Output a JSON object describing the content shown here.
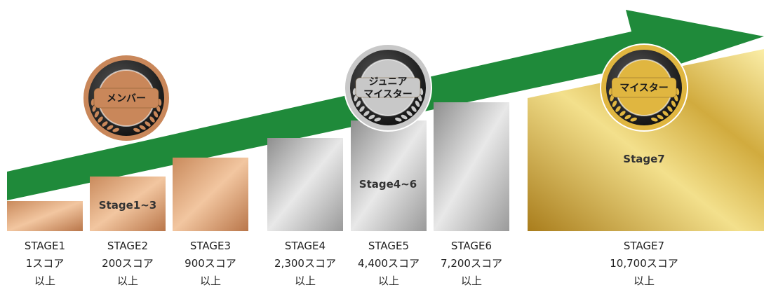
{
  "medals": [
    {
      "lines": [
        "メンバー"
      ]
    },
    {
      "lines": [
        "ジュニア",
        "マイスター"
      ]
    },
    {
      "lines": [
        "マイスター"
      ]
    }
  ],
  "groups": [
    "Stage1~3",
    "Stage4~6",
    "Stage7"
  ],
  "stages": [
    {
      "name": "STAGE1",
      "score": "1スコア",
      "note": "以上"
    },
    {
      "name": "STAGE2",
      "score": "200スコア",
      "note": "以上"
    },
    {
      "name": "STAGE3",
      "score": "900スコア",
      "note": "以上"
    },
    {
      "name": "STAGE4",
      "score": "2,300スコア",
      "note": "以上"
    },
    {
      "name": "STAGE5",
      "score": "4,400スコア",
      "note": "以上"
    },
    {
      "name": "STAGE6",
      "score": "7,200スコア",
      "note": "以上"
    },
    {
      "name": "STAGE7",
      "score": "10,700スコア",
      "note": "以上"
    }
  ]
}
